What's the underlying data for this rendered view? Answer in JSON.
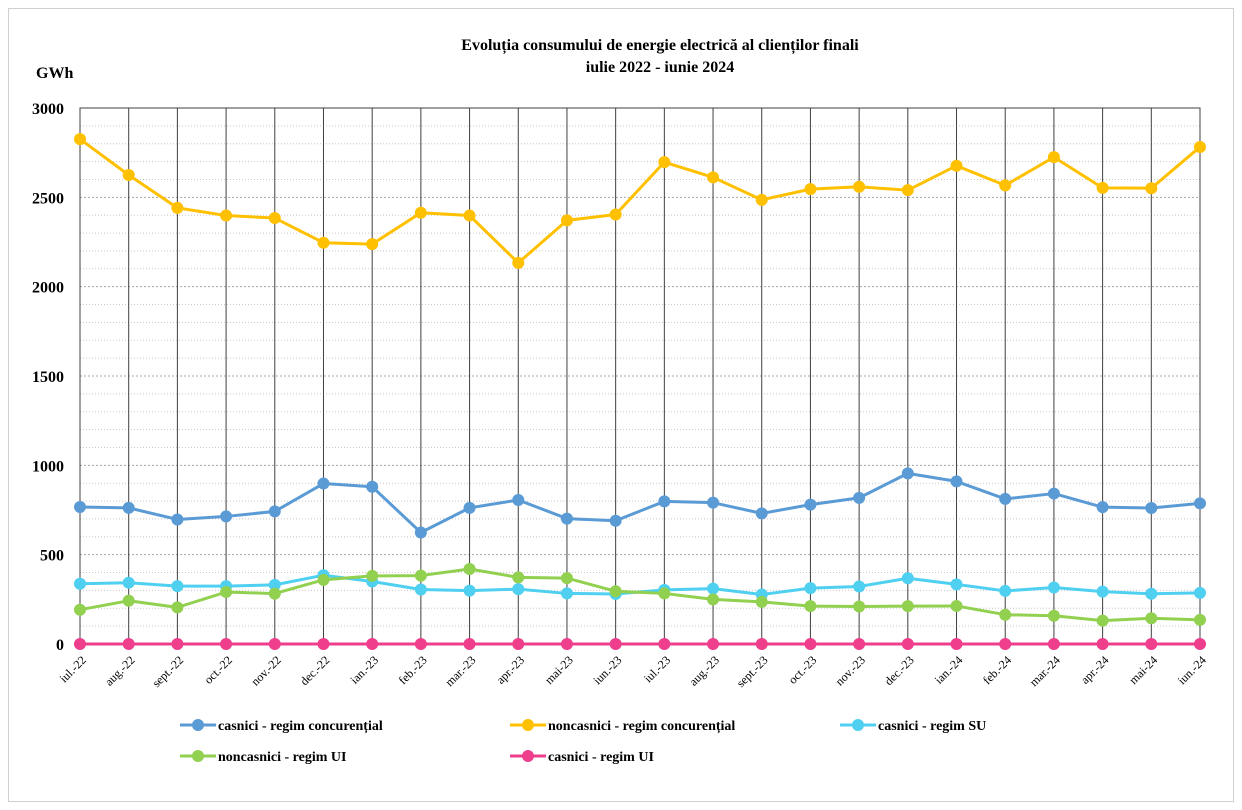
{
  "chart_data": {
    "type": "line",
    "title": [
      "Evoluția consumului de energie electrică al clienților finali",
      "iulie 2022 - iunie 2024"
    ],
    "ylabel": "GWh",
    "xlabel": "",
    "ylim": [
      0,
      3000
    ],
    "yticks": [
      0,
      500,
      1000,
      1500,
      2000,
      2500,
      3000
    ],
    "grid": true,
    "legend_position": "bottom",
    "categories": [
      "iul.-22",
      "aug.-22",
      "sept.-22",
      "oct.-22",
      "nov.-22",
      "dec.-22",
      "ian.-23",
      "feb.-23",
      "mar.-23",
      "apr.-23",
      "mai-23",
      "iun.-23",
      "iul.-23",
      "aug.-23",
      "sept.-23",
      "oct.-23",
      "nov.-23",
      "dec.-23",
      "ian.-24",
      "feb.-24",
      "mar.-24",
      "apr.-24",
      "mai-24",
      "iun.-24"
    ],
    "series": [
      {
        "name": "casnici - regim concurențial",
        "color": "#5b9bd5",
        "values": [
          767,
          762,
          697,
          714,
          742,
          898,
          880,
          624,
          762,
          806,
          702,
          690,
          798,
          791,
          731,
          780,
          818,
          955,
          910,
          812,
          842,
          766,
          761,
          787
        ]
      },
      {
        "name": "noncasnici - regim concurențial",
        "color": "#ffc000",
        "values": [
          2826,
          2625,
          2441,
          2398,
          2384,
          2246,
          2238,
          2414,
          2398,
          2133,
          2371,
          2404,
          2697,
          2612,
          2486,
          2546,
          2559,
          2540,
          2677,
          2567,
          2725,
          2553,
          2551,
          2782
        ]
      },
      {
        "name": "casnici - regim SU",
        "color": "#4fd0f0",
        "values": [
          337,
          343,
          324,
          324,
          331,
          385,
          350,
          305,
          299,
          307,
          283,
          280,
          303,
          310,
          277,
          313,
          322,
          368,
          334,
          297,
          316,
          293,
          281,
          286
        ]
      },
      {
        "name": "noncasnici - regim UI",
        "color": "#92d050",
        "values": [
          192,
          242,
          205,
          291,
          282,
          359,
          381,
          383,
          420,
          373,
          369,
          295,
          283,
          250,
          236,
          212,
          210,
          212,
          213,
          164,
          158,
          131,
          144,
          135
        ]
      },
      {
        "name": "casnici - regim UI",
        "color": "#ee3e8c",
        "values": [
          0,
          0,
          0,
          0,
          0,
          0,
          0,
          0,
          0,
          0,
          0,
          0,
          0,
          0,
          0,
          0,
          0,
          0,
          0,
          0,
          0,
          0,
          0,
          0
        ]
      }
    ]
  }
}
